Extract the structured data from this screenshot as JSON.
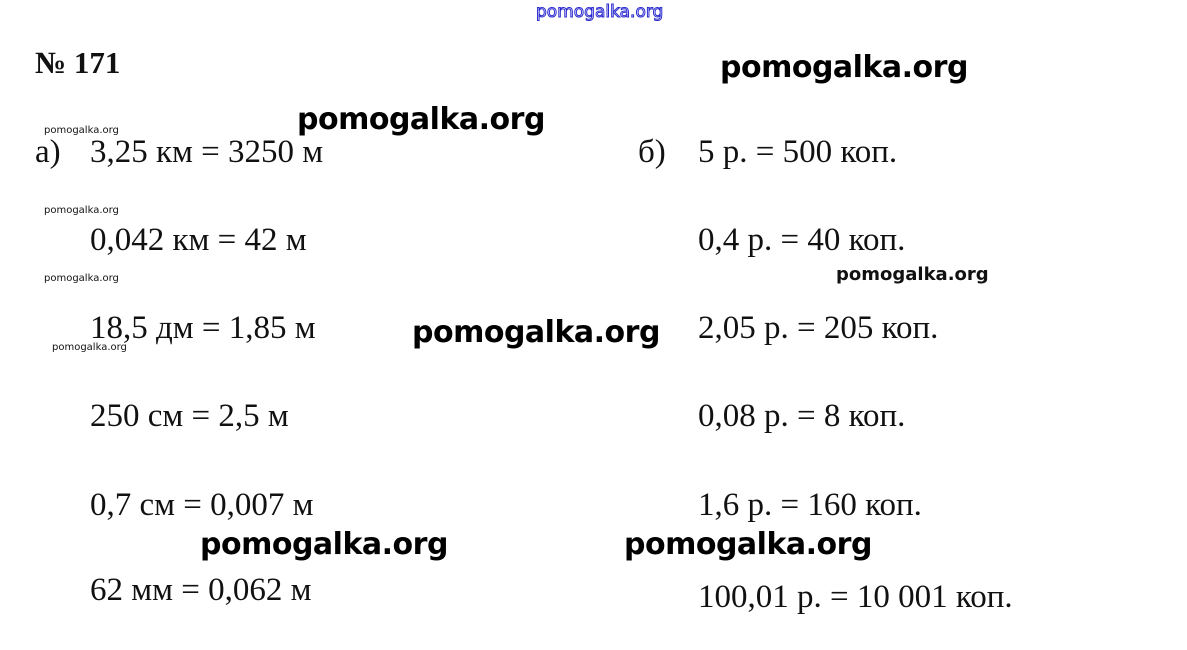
{
  "title": "№ 171",
  "watermark": "pomogalka.org",
  "part_a": {
    "label": "а)",
    "items": [
      "3,25 км = 3250 м",
      "0,042 км = 42 м",
      "18,5 дм = 1,85 м",
      "250 см = 2,5 м",
      "0,7 см = 0,007 м",
      "62 мм = 0,062 м"
    ]
  },
  "part_b": {
    "label": "б)",
    "items": [
      "5 р. = 500 коп.",
      "0,4 р. = 40 коп.",
      "2,05 р. = 205 коп.",
      "0,08 р. = 8 коп.",
      "1,6 р. = 160 коп.",
      "100,01 р. = 10 001 коп."
    ]
  },
  "colors": {
    "top_watermark": "#2a2ad0"
  }
}
